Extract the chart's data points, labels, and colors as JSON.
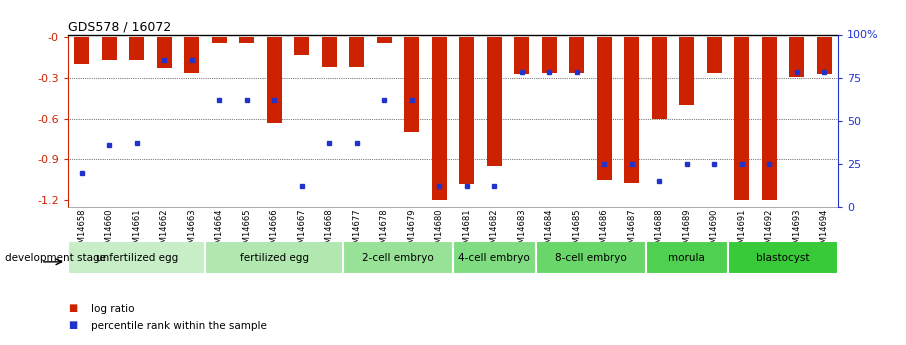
{
  "title": "GDS578 / 16072",
  "samples": [
    "GSM14658",
    "GSM14660",
    "GSM14661",
    "GSM14662",
    "GSM14663",
    "GSM14664",
    "GSM14665",
    "GSM14666",
    "GSM14667",
    "GSM14668",
    "GSM14677",
    "GSM14678",
    "GSM14679",
    "GSM14680",
    "GSM14681",
    "GSM14682",
    "GSM14683",
    "GSM14684",
    "GSM14685",
    "GSM14686",
    "GSM14687",
    "GSM14688",
    "GSM14689",
    "GSM14690",
    "GSM14691",
    "GSM14692",
    "GSM14693",
    "GSM14694"
  ],
  "log_ratio": [
    -0.2,
    -0.17,
    -0.17,
    -0.23,
    -0.26,
    -0.04,
    -0.04,
    -0.63,
    -0.13,
    -0.22,
    -0.22,
    -0.04,
    -0.7,
    -1.2,
    -1.08,
    -0.95,
    -0.27,
    -0.26,
    -0.26,
    -1.05,
    -1.07,
    -0.6,
    -0.5,
    -0.26,
    -1.2,
    -1.2,
    -0.29,
    -0.27
  ],
  "percentile": [
    20,
    36,
    37,
    85,
    85,
    62,
    62,
    62,
    12,
    37,
    37,
    62,
    62,
    12,
    12,
    12,
    78,
    78,
    78,
    25,
    25,
    15,
    25,
    25,
    25,
    25,
    78,
    78
  ],
  "stages": [
    {
      "label": "unfertilized egg",
      "start": 0,
      "end": 5,
      "color": "#c8eec8"
    },
    {
      "label": "fertilized egg",
      "start": 5,
      "end": 10,
      "color": "#b0e8b0"
    },
    {
      "label": "2-cell embryo",
      "start": 10,
      "end": 14,
      "color": "#98e298"
    },
    {
      "label": "4-cell embryo",
      "start": 14,
      "end": 17,
      "color": "#80dc80"
    },
    {
      "label": "8-cell embryo",
      "start": 17,
      "end": 21,
      "color": "#68d668"
    },
    {
      "label": "morula",
      "start": 21,
      "end": 24,
      "color": "#50d050"
    },
    {
      "label": "blastocyst",
      "start": 24,
      "end": 28,
      "color": "#38ca38"
    }
  ],
  "bar_color": "#cc2200",
  "dot_color": "#2233cc",
  "ylim_left": [
    -1.25,
    0.02
  ],
  "ylim_right": [
    0,
    100
  ],
  "yticks_left": [
    0,
    -0.3,
    -0.6,
    -0.9,
    -1.2
  ],
  "yticks_right": [
    0,
    25,
    50,
    75,
    100
  ],
  "background_color": "#ffffff"
}
